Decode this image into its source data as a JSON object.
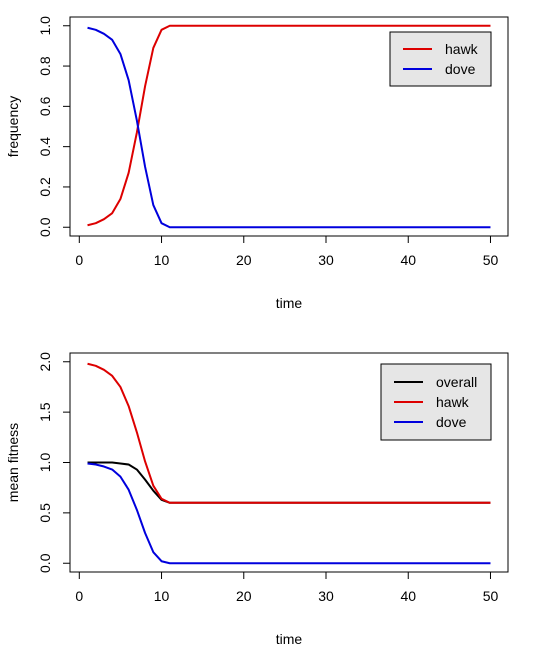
{
  "chart_data": [
    {
      "type": "line",
      "title": "",
      "xlabel": "time",
      "ylabel": "frequency",
      "xlim": [
        1,
        50
      ],
      "ylim": [
        0,
        1
      ],
      "xticks": [
        "0",
        "10",
        "20",
        "30",
        "40",
        "50"
      ],
      "yticks": [
        "0.0",
        "0.2",
        "0.4",
        "0.6",
        "0.8",
        "1.0"
      ],
      "grid": false,
      "legend_position": "top-right",
      "x": [
        1,
        2,
        3,
        4,
        5,
        6,
        7,
        8,
        9,
        10,
        11,
        12,
        13,
        14,
        15,
        16,
        17,
        18,
        19,
        20,
        21,
        22,
        23,
        24,
        25,
        26,
        27,
        28,
        29,
        30,
        31,
        32,
        33,
        34,
        35,
        36,
        37,
        38,
        39,
        40,
        41,
        42,
        43,
        44,
        45,
        46,
        47,
        48,
        49,
        50
      ],
      "series": [
        {
          "name": "hawk",
          "color": "#dd0000",
          "values": [
            0.01,
            0.02,
            0.04,
            0.07,
            0.14,
            0.27,
            0.47,
            0.7,
            0.89,
            0.98,
            1,
            1,
            1,
            1,
            1,
            1,
            1,
            1,
            1,
            1,
            1,
            1,
            1,
            1,
            1,
            1,
            1,
            1,
            1,
            1,
            1,
            1,
            1,
            1,
            1,
            1,
            1,
            1,
            1,
            1,
            1,
            1,
            1,
            1,
            1,
            1,
            1,
            1,
            1,
            1
          ]
        },
        {
          "name": "dove",
          "color": "#0000dd",
          "values": [
            0.99,
            0.98,
            0.96,
            0.93,
            0.86,
            0.73,
            0.53,
            0.3,
            0.11,
            0.02,
            0,
            0,
            0,
            0,
            0,
            0,
            0,
            0,
            0,
            0,
            0,
            0,
            0,
            0,
            0,
            0,
            0,
            0,
            0,
            0,
            0,
            0,
            0,
            0,
            0,
            0,
            0,
            0,
            0,
            0,
            0,
            0,
            0,
            0,
            0,
            0,
            0,
            0,
            0,
            0
          ]
        }
      ]
    },
    {
      "type": "line",
      "title": "",
      "xlabel": "time",
      "ylabel": "mean fitness",
      "xlim": [
        1,
        50
      ],
      "ylim": [
        0,
        2
      ],
      "xticks": [
        "0",
        "10",
        "20",
        "30",
        "40",
        "50"
      ],
      "yticks": [
        "0.0",
        "0.5",
        "1.0",
        "1.5",
        "2.0"
      ],
      "grid": false,
      "legend_position": "top-right",
      "x": [
        1,
        2,
        3,
        4,
        5,
        6,
        7,
        8,
        9,
        10,
        11,
        12,
        13,
        14,
        15,
        16,
        17,
        18,
        19,
        20,
        21,
        22,
        23,
        24,
        25,
        26,
        27,
        28,
        29,
        30,
        31,
        32,
        33,
        34,
        35,
        36,
        37,
        38,
        39,
        40,
        41,
        42,
        43,
        44,
        45,
        46,
        47,
        48,
        49,
        50
      ],
      "series": [
        {
          "name": "overall",
          "color": "#000000",
          "values": [
            1.0,
            1.0,
            1.0,
            1.0,
            0.99,
            0.98,
            0.93,
            0.83,
            0.72,
            0.63,
            0.6,
            0.6,
            0.6,
            0.6,
            0.6,
            0.6,
            0.6,
            0.6,
            0.6,
            0.6,
            0.6,
            0.6,
            0.6,
            0.6,
            0.6,
            0.6,
            0.6,
            0.6,
            0.6,
            0.6,
            0.6,
            0.6,
            0.6,
            0.6,
            0.6,
            0.6,
            0.6,
            0.6,
            0.6,
            0.6,
            0.6,
            0.6,
            0.6,
            0.6,
            0.6,
            0.6,
            0.6,
            0.6,
            0.6,
            0.6
          ]
        },
        {
          "name": "hawk",
          "color": "#dd0000",
          "values": [
            1.98,
            1.96,
            1.92,
            1.86,
            1.75,
            1.56,
            1.3,
            1.01,
            0.77,
            0.64,
            0.6,
            0.6,
            0.6,
            0.6,
            0.6,
            0.6,
            0.6,
            0.6,
            0.6,
            0.6,
            0.6,
            0.6,
            0.6,
            0.6,
            0.6,
            0.6,
            0.6,
            0.6,
            0.6,
            0.6,
            0.6,
            0.6,
            0.6,
            0.6,
            0.6,
            0.6,
            0.6,
            0.6,
            0.6,
            0.6,
            0.6,
            0.6,
            0.6,
            0.6,
            0.6,
            0.6,
            0.6,
            0.6,
            0.6,
            0.6
          ]
        },
        {
          "name": "dove",
          "color": "#0000dd",
          "values": [
            0.99,
            0.98,
            0.96,
            0.93,
            0.86,
            0.73,
            0.53,
            0.3,
            0.11,
            0.02,
            0,
            0,
            0,
            0,
            0,
            0,
            0,
            0,
            0,
            0,
            0,
            0,
            0,
            0,
            0,
            0,
            0,
            0,
            0,
            0,
            0,
            0,
            0,
            0,
            0,
            0,
            0,
            0,
            0,
            0,
            0,
            0,
            0,
            0,
            0,
            0,
            0,
            0,
            0,
            0
          ]
        }
      ]
    }
  ]
}
